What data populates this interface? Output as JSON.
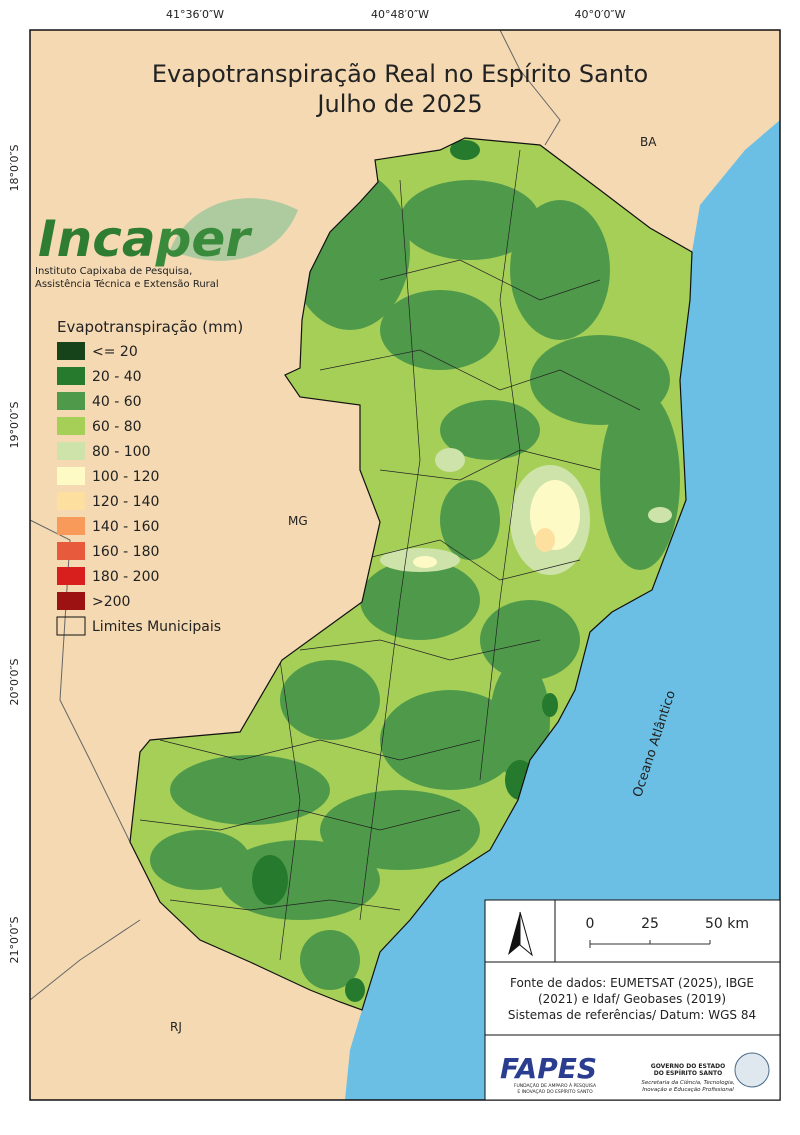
{
  "title": [
    "Evapotranspiração Real no Espírito Santo",
    "Julho de 2025"
  ],
  "coordinates": {
    "longitude": [
      "41°36′0″W",
      "40°48′0″W",
      "40°0′0″W"
    ],
    "latitude": [
      "18°0′0″S",
      "19°0′0″S",
      "20°0′0″S",
      "21°0′0″S"
    ]
  },
  "regions": {
    "ba": "BA",
    "mg": "MG",
    "rj": "RJ",
    "ocean": "Oceano Atlântico"
  },
  "logo": {
    "name": [
      "Inca",
      "per"
    ],
    "subtitle": [
      "Instituto Capixaba de Pesquisa,",
      "Assistência Técnica e Extensão Rural"
    ]
  },
  "legend": {
    "title": "Evapotranspiração (mm)",
    "items": [
      {
        "label": "<= 20",
        "color": "#17431a"
      },
      {
        "label": "20 - 40",
        "color": "#267a2e"
      },
      {
        "label": "40 - 60",
        "color": "#4f9a4a"
      },
      {
        "label": "60 - 80",
        "color": "#a6cf58"
      },
      {
        "label": "80 - 100",
        "color": "#cde3a9"
      },
      {
        "label": "100 - 120",
        "color": "#fdfac6"
      },
      {
        "label": "120 - 140",
        "color": "#fde0a0"
      },
      {
        "label": "140 - 160",
        "color": "#f79a5a"
      },
      {
        "label": "160 - 180",
        "color": "#e85a3c"
      },
      {
        "label": "180 - 200",
        "color": "#d81f1d"
      },
      {
        "label": ">200",
        "color": "#9c1111"
      }
    ],
    "boundary": "Limites Municipais"
  },
  "scale": {
    "ticks": [
      "0",
      "25",
      "50 km"
    ]
  },
  "source": [
    "Fonte de dados: EUMETSAT (2025), IBGE",
    "(2021) e Idaf/ Geobases (2019)",
    "Sistemas de referências/ Datum: WGS 84"
  ],
  "footer": {
    "fapes": "FAPES",
    "fapes_sub": [
      "FUNDAÇÃO DE AMPARO À PESQUISA",
      "E INOVAÇÃO DO ESPÍRITO SANTO"
    ],
    "gov": [
      "GOVERNO DO ESTADO",
      "DO ESPÍRITO SANTO"
    ],
    "secretaria": [
      "Secretaria da Ciência, Tecnologia,",
      "Inovação e Educação Profissional"
    ]
  }
}
